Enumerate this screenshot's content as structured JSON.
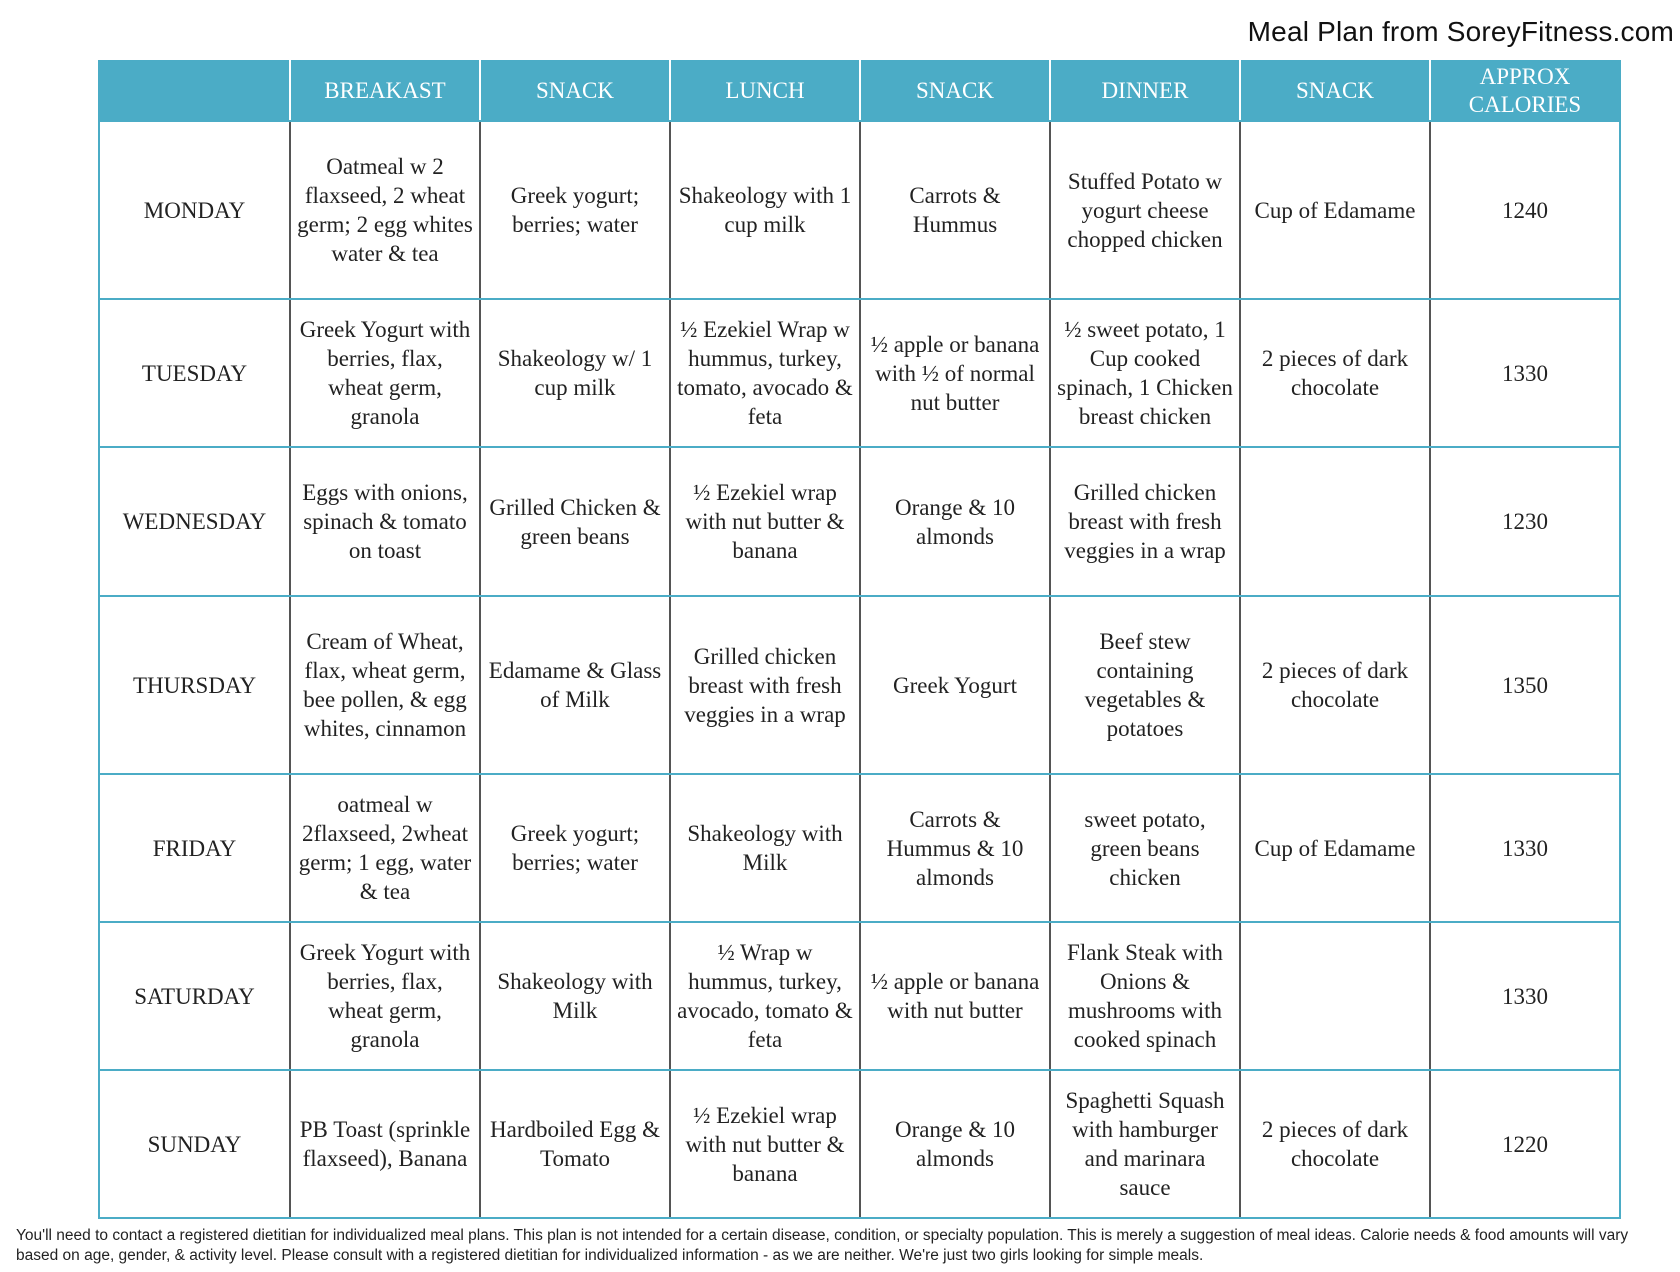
{
  "title": "Meal Plan from SoreyFitness.com",
  "colors": {
    "header_bg": "#4bacc6",
    "header_text": "#ffffff",
    "border": "#4bacc6"
  },
  "table": {
    "headers": [
      "",
      "BREAKAST",
      "SNACK",
      "LUNCH",
      "SNACK",
      "DINNER",
      "SNACK",
      "APPROX CALORIES"
    ],
    "rows": [
      {
        "day": "MONDAY",
        "breakfast": "Oatmeal w 2 flaxseed, 2 wheat germ; 2 egg whites water & tea",
        "snack1": "Greek yogurt; berries; water",
        "lunch": "Shakeology with 1 cup milk",
        "snack2": "Carrots & Hummus",
        "dinner": "Stuffed Potato w yogurt cheese chopped chicken",
        "snack3": "Cup of Edamame",
        "calories": "1240"
      },
      {
        "day": "TUESDAY",
        "breakfast": "Greek Yogurt with berries, flax, wheat germ, granola",
        "snack1": "Shakeology w/ 1 cup milk",
        "lunch": "½ Ezekiel Wrap w hummus, turkey, tomato, avocado & feta",
        "snack2": "½ apple or banana with ½ of normal nut butter",
        "dinner": "½ sweet potato, 1 Cup cooked spinach, 1 Chicken breast chicken",
        "snack3": "2 pieces of dark chocolate",
        "calories": "1330"
      },
      {
        "day": "WEDNESDAY",
        "breakfast": "Eggs with onions, spinach & tomato on toast",
        "snack1": "Grilled Chicken & green beans",
        "lunch": "½ Ezekiel wrap with nut butter & banana",
        "snack2": "Orange & 10 almonds",
        "dinner": "Grilled chicken breast with fresh veggies in a wrap",
        "snack3": "",
        "calories": "1230"
      },
      {
        "day": "THURSDAY",
        "breakfast": "Cream of Wheat, flax, wheat germ, bee pollen, & egg whites, cinnamon",
        "snack1": "Edamame & Glass of Milk",
        "lunch": "Grilled chicken breast with fresh veggies in a wrap",
        "snack2": "Greek Yogurt",
        "dinner": "Beef stew containing vegetables & potatoes",
        "snack3": "2 pieces of dark chocolate",
        "calories": "1350"
      },
      {
        "day": "FRIDAY",
        "breakfast": "oatmeal w 2flaxseed, 2wheat germ; 1 egg, water & tea",
        "snack1": "Greek yogurt; berries; water",
        "lunch": "Shakeology with Milk",
        "snack2": "Carrots & Hummus & 10 almonds",
        "dinner": "sweet potato, green beans chicken",
        "snack3": "Cup of Edamame",
        "calories": "1330"
      },
      {
        "day": "SATURDAY",
        "breakfast": "Greek Yogurt with berries, flax, wheat germ, granola",
        "snack1": "Shakeology with Milk",
        "lunch": "½ Wrap w hummus, turkey, avocado, tomato & feta",
        "snack2": "½ apple or banana with nut butter",
        "dinner": "Flank Steak with Onions & mushrooms with cooked spinach",
        "snack3": "",
        "calories": "1330"
      },
      {
        "day": "SUNDAY",
        "breakfast": "PB Toast (sprinkle flaxseed), Banana",
        "snack1": "Hardboiled Egg & Tomato",
        "lunch": "½ Ezekiel wrap with nut butter & banana",
        "snack2": "Orange & 10 almonds",
        "dinner": "Spaghetti Squash with hamburger and marinara sauce",
        "snack3": "2 pieces of dark chocolate",
        "calories": "1220"
      }
    ]
  },
  "footer": "You'll need to contact a registered dietitian for individualized meal plans. This plan is not intended for a certain disease, condition, or specialty population. This is merely a suggestion of meal ideas. Calorie needs & food amounts will vary based on age, gender, & activity level. Please consult with a registered dietitian for individualized information - as we are neither. We're just two girls looking for simple meals."
}
